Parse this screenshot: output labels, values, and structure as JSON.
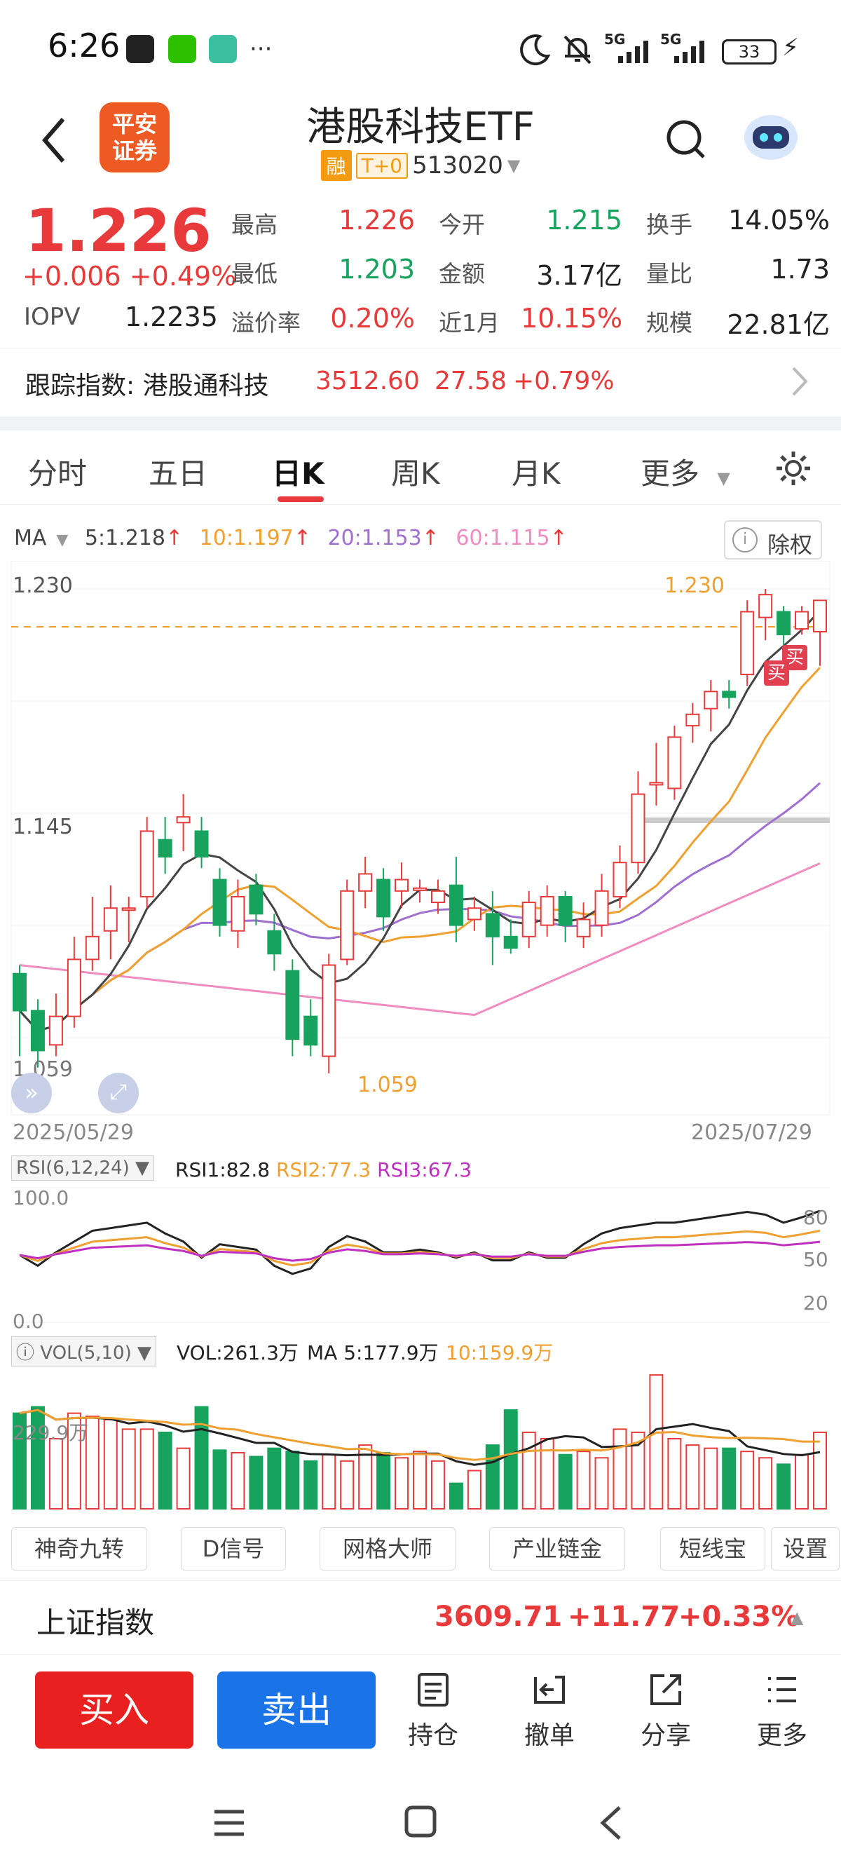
{
  "status_bar": {
    "time": "6:26",
    "battery": "33",
    "net1": "5G",
    "net2": "5G"
  },
  "header": {
    "logo_line1": "平安",
    "logo_line2": "证券",
    "title": "港股科技ETF",
    "tag_rong": "融",
    "tag_t0": "T+0",
    "code": "513020"
  },
  "quote": {
    "price": "1.226",
    "change": "+0.006",
    "change_pct": "+0.49%",
    "iopv_label": "IOPV",
    "iopv_value": "1.2235",
    "fields": {
      "high_label": "最高",
      "high": "1.226",
      "open_label": "今开",
      "open": "1.215",
      "turnover_label": "换手",
      "turnover": "14.05%",
      "low_label": "最低",
      "low": "1.203",
      "amount_label": "金额",
      "amount": "3.17亿",
      "vol_ratio_label": "量比",
      "vol_ratio": "1.73",
      "premium_label": "溢价率",
      "premium": "0.20%",
      "month_label": "近1月",
      "month": "10.15%",
      "scale_label": "规模",
      "scale": "22.81亿"
    }
  },
  "tracking": {
    "label": "跟踪指数: 港股通科技",
    "value": "3512.60",
    "change": "27.58",
    "pct": "+0.79%"
  },
  "tabs": [
    "分时",
    "五日",
    "日K",
    "周K",
    "月K",
    "更多"
  ],
  "active_tab": "日K",
  "chart": {
    "ma_label": "MA",
    "ma5": "5:1.218",
    "ma10": "10:1.197",
    "ma20": "20:1.153",
    "ma60": "60:1.115",
    "chuquan": "除权",
    "y_top": "1.230",
    "y_mid": "1.145",
    "y_low": "1.059",
    "high_mark": "1.230",
    "low_mark": "1.059",
    "buy_tag": "买",
    "date_start": "2025/05/29",
    "date_end": "2025/07/29",
    "colors": {
      "up": "#e83a3a",
      "down": "#17a35d",
      "ma5": "#444444",
      "ma10": "#f0a030",
      "ma20": "#a070d0",
      "ma60": "#f08cc0"
    }
  },
  "rsi": {
    "label": "RSI(6,12,24)",
    "rsi1": "RSI1:82.8",
    "rsi2": "RSI2:77.3",
    "rsi3": "RSI3:67.3",
    "y_top": "100.0",
    "y_bottom": "0.0",
    "lvl80": "80",
    "lvl50": "50",
    "lvl20": "20"
  },
  "vol": {
    "label": "VOL(5,10)",
    "vol": "VOL:261.3万",
    "ma5": "MA 5:177.9万",
    "ma10": "10:159.9万",
    "y_label": "229.9万"
  },
  "tools": [
    "神奇九转",
    "D信号",
    "网格大师",
    "产业链金",
    "短线宝",
    "设置"
  ],
  "index": {
    "name": "上证指数",
    "value": "3609.71",
    "change": "+11.77",
    "pct": "+0.33%"
  },
  "bottom_actions": {
    "buy": "买入",
    "sell": "卖出",
    "hold": "持仓",
    "cancel": "撤单",
    "share": "分享",
    "more": "更多"
  }
}
